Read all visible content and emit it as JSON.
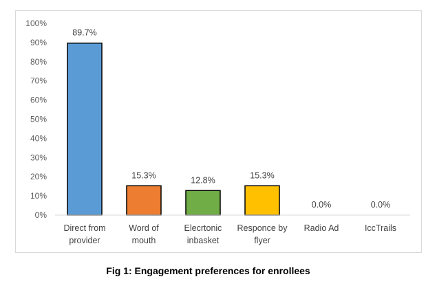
{
  "chart_data": {
    "type": "bar",
    "title": "",
    "xlabel": "",
    "ylabel": "",
    "ylim": [
      0,
      100
    ],
    "yticks": [
      "0%",
      "10%",
      "20%",
      "30%",
      "40%",
      "50%",
      "60%",
      "70%",
      "80%",
      "90%",
      "100%"
    ],
    "categories": [
      [
        "Direct from",
        "provider"
      ],
      [
        "Word of",
        "mouth"
      ],
      [
        "Elecrtonic",
        "inbasket"
      ],
      [
        "Responce by",
        "flyer"
      ],
      [
        "Radio Ad"
      ],
      [
        "IccTrails"
      ]
    ],
    "values": [
      89.7,
      15.3,
      12.8,
      15.3,
      0.0,
      0.0
    ],
    "data_labels": [
      "89.7%",
      "15.3%",
      "12.8%",
      "15.3%",
      "0.0%",
      "0.0%"
    ],
    "colors": [
      "#5b9bd5",
      "#ed7d31",
      "#70ad47",
      "#ffc000",
      "#a5a5a5",
      "#4472c4"
    ],
    "grid": false,
    "legend": "none"
  },
  "caption": "Fig 1: Engagement preferences for enrollees"
}
